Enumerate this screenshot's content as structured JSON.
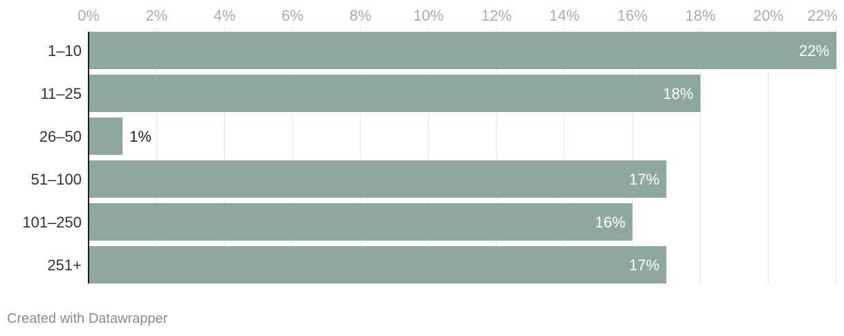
{
  "chart_data": {
    "type": "bar",
    "orientation": "horizontal",
    "categories": [
      "1–10",
      "11–25",
      "26–50",
      "51–100",
      "101–250",
      "251+"
    ],
    "values": [
      22,
      18,
      1,
      17,
      16,
      17
    ],
    "value_labels": [
      "22%",
      "18%",
      "1%",
      "17%",
      "16%",
      "17%"
    ],
    "x_ticks": [
      0,
      2,
      4,
      6,
      8,
      10,
      12,
      14,
      16,
      18,
      20,
      22
    ],
    "x_tick_labels": [
      "0%",
      "2%",
      "4%",
      "6%",
      "8%",
      "10%",
      "12%",
      "14%",
      "16%",
      "18%",
      "20%",
      "22%"
    ],
    "xlim": [
      0,
      22
    ],
    "grid": true,
    "colors": {
      "bar": "#8ea8a1",
      "grid": "#e2e2e2",
      "axis": "#1a1a1a",
      "tick_label": "#aaaaaa",
      "category_label": "#333333",
      "inside_label": "#ffffff",
      "outside_label": "#222222"
    }
  },
  "footer": {
    "credit": "Created with Datawrapper"
  }
}
